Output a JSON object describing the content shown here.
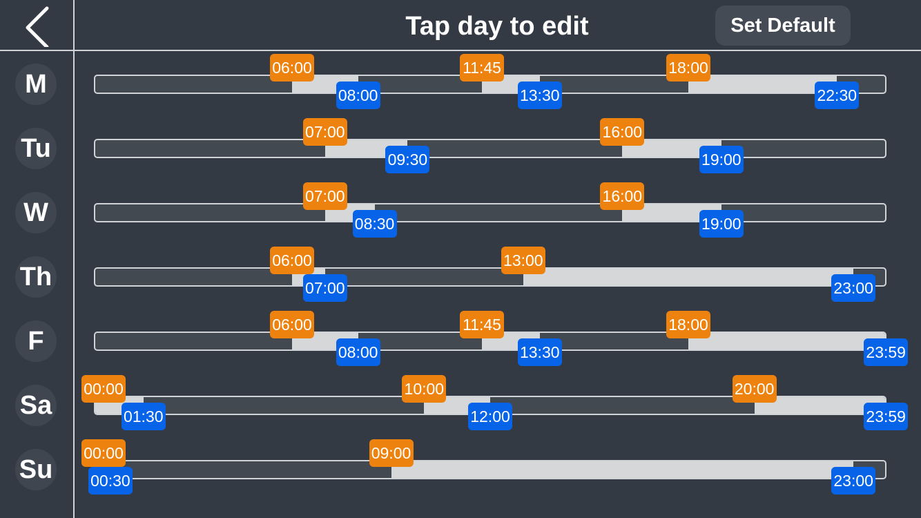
{
  "header": {
    "title": "Tap day to edit",
    "set_default_label": "Set Default",
    "back_icon": "chevron-left-icon"
  },
  "colors": {
    "background": "#343a44",
    "start_tag": "#ee820f",
    "end_tag": "#0764e8",
    "active_segment": "#d6d7d9",
    "track": "#434950"
  },
  "days": [
    {
      "label": "M",
      "periods": [
        {
          "start": "06:00",
          "end": "08:00"
        },
        {
          "start": "11:45",
          "end": "13:30"
        },
        {
          "start": "18:00",
          "end": "22:30"
        }
      ]
    },
    {
      "label": "Tu",
      "periods": [
        {
          "start": "07:00",
          "end": "09:30"
        },
        {
          "start": "16:00",
          "end": "19:00"
        }
      ]
    },
    {
      "label": "W",
      "periods": [
        {
          "start": "07:00",
          "end": "08:30"
        },
        {
          "start": "16:00",
          "end": "19:00"
        }
      ]
    },
    {
      "label": "Th",
      "periods": [
        {
          "start": "06:00",
          "end": "07:00"
        },
        {
          "start": "13:00",
          "end": "23:00"
        }
      ]
    },
    {
      "label": "F",
      "periods": [
        {
          "start": "06:00",
          "end": "08:00"
        },
        {
          "start": "11:45",
          "end": "13:30"
        },
        {
          "start": "18:00",
          "end": "23:59"
        }
      ]
    },
    {
      "label": "Sa",
      "periods": [
        {
          "start": "00:00",
          "end": "01:30"
        },
        {
          "start": "10:00",
          "end": "12:00"
        },
        {
          "start": "20:00",
          "end": "23:59"
        }
      ]
    },
    {
      "label": "Su",
      "periods": [
        {
          "start": "00:00",
          "end": "00:30"
        },
        {
          "start": "09:00",
          "end": "23:00"
        }
      ]
    }
  ]
}
